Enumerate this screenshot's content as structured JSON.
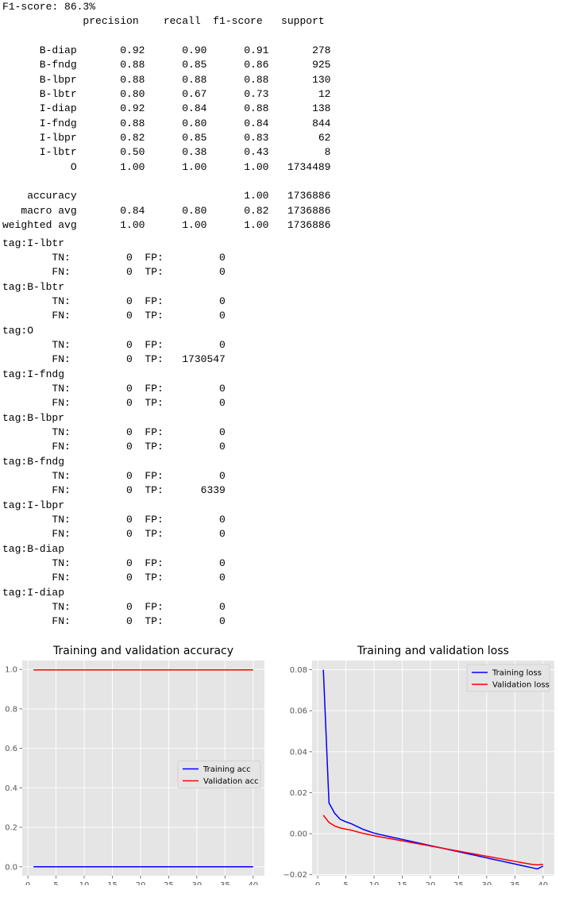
{
  "report": {
    "f1_line": "F1-score: 86.3%",
    "header_line": "             precision    recall  f1-score   support",
    "class_lines": [
      "      B-diap       0.92      0.90      0.91       278",
      "      B-fndg       0.88      0.85      0.86       925",
      "      B-lbpr       0.88      0.88      0.88       130",
      "      B-lbtr       0.80      0.67      0.73        12",
      "      I-diap       0.92      0.84      0.88       138",
      "      I-fndg       0.88      0.80      0.84       844",
      "      I-lbpr       0.82      0.85      0.83        62",
      "      I-lbtr       0.50      0.38      0.43         8",
      "           O       1.00      1.00      1.00   1734489"
    ],
    "summary_lines": [
      "    accuracy                           1.00   1736886",
      "   macro avg       0.84      0.80      0.82   1736886",
      "weighted avg       1.00      1.00      1.00   1736886"
    ],
    "tag_blocks": [
      {
        "tag": "tag:I-lbtr",
        "tn": "0",
        "fp": "0",
        "fn": "0",
        "tp": "0"
      },
      {
        "tag": "tag:B-lbtr",
        "tn": "0",
        "fp": "0",
        "fn": "0",
        "tp": "0"
      },
      {
        "tag": "tag:O",
        "tn": "0",
        "fp": "0",
        "fn": "0",
        "tp": "1730547"
      },
      {
        "tag": "tag:I-fndg",
        "tn": "0",
        "fp": "0",
        "fn": "0",
        "tp": "0"
      },
      {
        "tag": "tag:B-lbpr",
        "tn": "0",
        "fp": "0",
        "fn": "0",
        "tp": "0"
      },
      {
        "tag": "tag:B-fndg",
        "tn": "0",
        "fp": "0",
        "fn": "0",
        "tp": "6339"
      },
      {
        "tag": "tag:I-lbpr",
        "tn": "0",
        "fp": "0",
        "fn": "0",
        "tp": "0"
      },
      {
        "tag": "tag:B-diap",
        "tn": "0",
        "fp": "0",
        "fn": "0",
        "tp": "0"
      },
      {
        "tag": "tag:I-diap",
        "tn": "0",
        "fp": "0",
        "fn": "0",
        "tp": "0"
      }
    ]
  },
  "chart_data": [
    {
      "type": "line",
      "title": "Training and validation accuracy",
      "xlabel": "",
      "ylabel": "",
      "xlim": [
        -1,
        42
      ],
      "ylim": [
        -0.045,
        1.045
      ],
      "xticks": [
        0,
        5,
        10,
        15,
        20,
        25,
        30,
        35,
        40
      ],
      "yticks": [
        0.0,
        0.2,
        0.4,
        0.6,
        0.8,
        1.0
      ],
      "ytick_labels": [
        "0.0",
        "0.2",
        "0.4",
        "0.6",
        "0.8",
        "1.0"
      ],
      "grid": true,
      "legend": "center-right",
      "x": [
        1,
        2,
        3,
        4,
        5,
        6,
        7,
        8,
        9,
        10,
        11,
        12,
        13,
        14,
        15,
        16,
        17,
        18,
        19,
        20,
        21,
        22,
        23,
        24,
        25,
        26,
        27,
        28,
        29,
        30,
        31,
        32,
        33,
        34,
        35,
        36,
        37,
        38,
        39,
        40
      ],
      "series": [
        {
          "name": "Training acc",
          "color": "#0000ff",
          "values": [
            0.0,
            0.0,
            0.0,
            0.0,
            0.0,
            0.0,
            0.0,
            0.0,
            0.0,
            0.0,
            0.0,
            0.0,
            0.0,
            0.0,
            0.0,
            0.0,
            0.0,
            0.0,
            0.0,
            0.0,
            0.0,
            0.0,
            0.0,
            0.0,
            0.0,
            0.0,
            0.0,
            0.0,
            0.0,
            0.0,
            0.0,
            0.0,
            0.0,
            0.0,
            0.0,
            0.0,
            0.0,
            0.0,
            0.0,
            0.0
          ]
        },
        {
          "name": "Validation acc",
          "color": "#ff0000",
          "values": [
            0.997,
            0.998,
            0.998,
            0.998,
            0.998,
            0.998,
            0.998,
            0.998,
            0.998,
            0.998,
            0.998,
            0.998,
            0.998,
            0.998,
            0.998,
            0.998,
            0.998,
            0.998,
            0.998,
            0.998,
            0.998,
            0.998,
            0.998,
            0.998,
            0.998,
            0.998,
            0.998,
            0.998,
            0.998,
            0.998,
            0.998,
            0.998,
            0.998,
            0.998,
            0.998,
            0.998,
            0.998,
            0.998,
            0.998,
            0.998
          ]
        }
      ]
    },
    {
      "type": "line",
      "title": "Training and validation loss",
      "xlabel": "",
      "ylabel": "",
      "xlim": [
        -1,
        42
      ],
      "ylim": [
        -0.0205,
        0.0845
      ],
      "xticks": [
        0,
        5,
        10,
        15,
        20,
        25,
        30,
        35,
        40
      ],
      "yticks": [
        -0.02,
        0.0,
        0.02,
        0.04,
        0.06,
        0.08
      ],
      "ytick_labels": [
        "−0.02",
        "0.00",
        "0.02",
        "0.04",
        "0.06",
        "0.08"
      ],
      "grid": true,
      "legend": "top-right",
      "x": [
        1,
        2,
        3,
        4,
        5,
        6,
        7,
        8,
        9,
        10,
        11,
        12,
        13,
        14,
        15,
        16,
        17,
        18,
        19,
        20,
        21,
        22,
        23,
        24,
        25,
        26,
        27,
        28,
        29,
        30,
        31,
        32,
        33,
        34,
        35,
        36,
        37,
        38,
        39,
        40
      ],
      "series": [
        {
          "name": "Training loss",
          "color": "#0000ff",
          "values": [
            0.08,
            0.015,
            0.01,
            0.007,
            0.0058,
            0.0048,
            0.0035,
            0.0022,
            0.0012,
            0.0003,
            -0.0004,
            -0.001,
            -0.0016,
            -0.0022,
            -0.0028,
            -0.0034,
            -0.004,
            -0.0046,
            -0.0052,
            -0.0058,
            -0.0064,
            -0.007,
            -0.0076,
            -0.0082,
            -0.0088,
            -0.0094,
            -0.01,
            -0.0106,
            -0.0112,
            -0.0118,
            -0.0124,
            -0.013,
            -0.0136,
            -0.0142,
            -0.0148,
            -0.0154,
            -0.016,
            -0.0166,
            -0.0172,
            -0.0158
          ]
        },
        {
          "name": "Validation loss",
          "color": "#ff0000",
          "values": [
            0.009,
            0.0055,
            0.0038,
            0.0028,
            0.0022,
            0.0017,
            0.0009,
            0.0002,
            -0.0004,
            -0.001,
            -0.0015,
            -0.002,
            -0.0025,
            -0.003,
            -0.0035,
            -0.004,
            -0.0045,
            -0.005,
            -0.0055,
            -0.006,
            -0.0065,
            -0.007,
            -0.0075,
            -0.008,
            -0.0085,
            -0.009,
            -0.0095,
            -0.01,
            -0.0105,
            -0.011,
            -0.0115,
            -0.012,
            -0.0125,
            -0.013,
            -0.0135,
            -0.014,
            -0.0145,
            -0.015,
            -0.0152,
            -0.015
          ]
        }
      ]
    }
  ]
}
